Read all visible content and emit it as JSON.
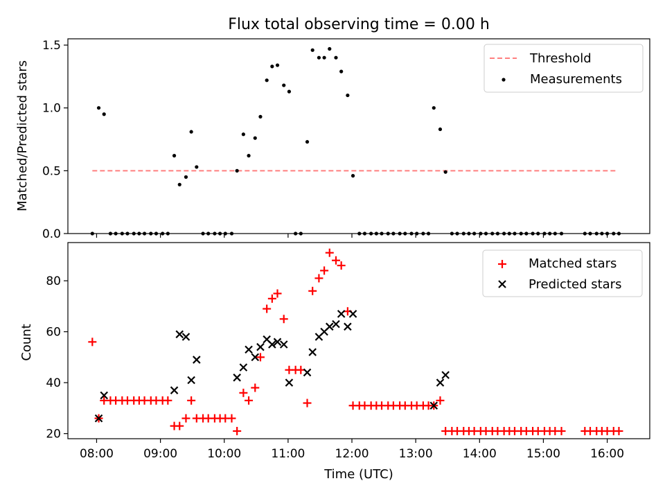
{
  "figure": {
    "title": "Flux total observing time = 0.00 h",
    "xlabel": "Time (UTC)"
  },
  "chart_data": [
    {
      "type": "scatter",
      "panel": "top",
      "ylabel": "Matched/Predicted stars",
      "xlim": [
        "07:33",
        "16:40"
      ],
      "ylim": [
        0,
        1.55
      ],
      "y_ticks": [
        "0.0",
        "0.5",
        "1.0",
        "1.5"
      ],
      "x_ticks": [
        "08:00",
        "09:00",
        "10:00",
        "11:00",
        "12:00",
        "13:00",
        "14:00",
        "15:00",
        "16:00"
      ],
      "legend_placement": "top-right",
      "threshold": {
        "name": "Threshold",
        "value": 0.5,
        "x_range": [
          "07:56",
          "16:10"
        ],
        "color": "#ff7f7f",
        "style": "dashed"
      },
      "series": [
        {
          "name": "Measurements",
          "color": "#000000",
          "marker": "dot",
          "points": [
            [
              "07:56",
              0
            ],
            [
              "08:02",
              1.0
            ],
            [
              "08:07",
              0.95
            ],
            [
              "08:13",
              0
            ],
            [
              "08:18",
              0
            ],
            [
              "08:24",
              0
            ],
            [
              "08:29",
              0
            ],
            [
              "08:35",
              0
            ],
            [
              "08:40",
              0
            ],
            [
              "08:45",
              0
            ],
            [
              "08:51",
              0
            ],
            [
              "08:56",
              0
            ],
            [
              "09:02",
              0
            ],
            [
              "09:07",
              0
            ],
            [
              "09:13",
              0.62
            ],
            [
              "09:18",
              0.39
            ],
            [
              "09:24",
              0.45
            ],
            [
              "09:29",
              0.81
            ],
            [
              "09:34",
              0.53
            ],
            [
              "09:40",
              0
            ],
            [
              "09:45",
              0
            ],
            [
              "09:51",
              0
            ],
            [
              "09:56",
              0
            ],
            [
              "10:01",
              0
            ],
            [
              "10:07",
              0
            ],
            [
              "10:12",
              0.5
            ],
            [
              "10:18",
              0.79
            ],
            [
              "10:23",
              0.62
            ],
            [
              "10:29",
              0.76
            ],
            [
              "10:34",
              0.93
            ],
            [
              "10:40",
              1.22
            ],
            [
              "10:45",
              1.33
            ],
            [
              "10:50",
              1.34
            ],
            [
              "10:56",
              1.18
            ],
            [
              "11:01",
              1.13
            ],
            [
              "11:07",
              0
            ],
            [
              "11:12",
              0
            ],
            [
              "11:18",
              0.73
            ],
            [
              "11:23",
              1.46
            ],
            [
              "11:29",
              1.4
            ],
            [
              "11:34",
              1.4
            ],
            [
              "11:39",
              1.47
            ],
            [
              "11:45",
              1.4
            ],
            [
              "11:50",
              1.29
            ],
            [
              "11:56",
              1.1
            ],
            [
              "12:01",
              0.46
            ],
            [
              "12:07",
              0
            ],
            [
              "12:12",
              0
            ],
            [
              "12:18",
              0
            ],
            [
              "12:23",
              0
            ],
            [
              "12:28",
              0
            ],
            [
              "12:34",
              0
            ],
            [
              "12:39",
              0
            ],
            [
              "12:45",
              0
            ],
            [
              "12:50",
              0
            ],
            [
              "12:56",
              0
            ],
            [
              "13:01",
              0
            ],
            [
              "13:07",
              0
            ],
            [
              "13:12",
              0
            ],
            [
              "13:17",
              1.0
            ],
            [
              "13:23",
              0.83
            ],
            [
              "13:28",
              0.49
            ],
            [
              "13:34",
              0
            ],
            [
              "13:39",
              0
            ],
            [
              "13:45",
              0
            ],
            [
              "13:50",
              0
            ],
            [
              "13:55",
              0
            ],
            [
              "14:01",
              0
            ],
            [
              "14:06",
              0
            ],
            [
              "14:12",
              0
            ],
            [
              "14:17",
              0
            ],
            [
              "14:23",
              0
            ],
            [
              "14:28",
              0
            ],
            [
              "14:33",
              0
            ],
            [
              "14:39",
              0
            ],
            [
              "14:44",
              0
            ],
            [
              "14:50",
              0
            ],
            [
              "14:55",
              0
            ],
            [
              "15:01",
              0
            ],
            [
              "15:06",
              0
            ],
            [
              "15:11",
              0
            ],
            [
              "15:17",
              0
            ],
            [
              "15:39",
              0
            ],
            [
              "15:44",
              0
            ],
            [
              "15:50",
              0
            ],
            [
              "15:55",
              0
            ],
            [
              "16:00",
              0
            ],
            [
              "16:06",
              0
            ],
            [
              "16:11",
              0
            ]
          ]
        }
      ]
    },
    {
      "type": "scatter",
      "panel": "bottom",
      "ylabel": "Count",
      "xlim": [
        "07:33",
        "16:40"
      ],
      "ylim": [
        18,
        95
      ],
      "y_ticks": [
        "20",
        "40",
        "60",
        "80"
      ],
      "x_ticks": [
        "08:00",
        "09:00",
        "10:00",
        "11:00",
        "12:00",
        "13:00",
        "14:00",
        "15:00",
        "16:00"
      ],
      "legend_placement": "top-right",
      "series": [
        {
          "name": "Matched stars",
          "color": "#ff0000",
          "marker": "plus",
          "points": [
            [
              "07:56",
              56
            ],
            [
              "08:02",
              26
            ],
            [
              "08:07",
              33
            ],
            [
              "08:13",
              33
            ],
            [
              "08:18",
              33
            ],
            [
              "08:24",
              33
            ],
            [
              "08:29",
              33
            ],
            [
              "08:35",
              33
            ],
            [
              "08:40",
              33
            ],
            [
              "08:45",
              33
            ],
            [
              "08:51",
              33
            ],
            [
              "08:56",
              33
            ],
            [
              "09:02",
              33
            ],
            [
              "09:07",
              33
            ],
            [
              "09:13",
              23
            ],
            [
              "09:18",
              23
            ],
            [
              "09:24",
              26
            ],
            [
              "09:29",
              33
            ],
            [
              "09:34",
              26
            ],
            [
              "09:40",
              26
            ],
            [
              "09:45",
              26
            ],
            [
              "09:51",
              26
            ],
            [
              "09:56",
              26
            ],
            [
              "10:01",
              26
            ],
            [
              "10:07",
              26
            ],
            [
              "10:12",
              21
            ],
            [
              "10:18",
              36
            ],
            [
              "10:23",
              33
            ],
            [
              "10:29",
              38
            ],
            [
              "10:34",
              50
            ],
            [
              "10:40",
              69
            ],
            [
              "10:45",
              73
            ],
            [
              "10:50",
              75
            ],
            [
              "10:56",
              65
            ],
            [
              "11:01",
              45
            ],
            [
              "11:07",
              45
            ],
            [
              "11:12",
              45
            ],
            [
              "11:18",
              32
            ],
            [
              "11:23",
              76
            ],
            [
              "11:29",
              81
            ],
            [
              "11:34",
              84
            ],
            [
              "11:39",
              91
            ],
            [
              "11:45",
              88
            ],
            [
              "11:50",
              86
            ],
            [
              "11:56",
              68
            ],
            [
              "12:01",
              31
            ],
            [
              "12:07",
              31
            ],
            [
              "12:12",
              31
            ],
            [
              "12:18",
              31
            ],
            [
              "12:23",
              31
            ],
            [
              "12:28",
              31
            ],
            [
              "12:34",
              31
            ],
            [
              "12:39",
              31
            ],
            [
              "12:45",
              31
            ],
            [
              "12:50",
              31
            ],
            [
              "12:56",
              31
            ],
            [
              "13:01",
              31
            ],
            [
              "13:07",
              31
            ],
            [
              "13:12",
              31
            ],
            [
              "13:17",
              31
            ],
            [
              "13:23",
              33
            ],
            [
              "13:28",
              21
            ],
            [
              "13:34",
              21
            ],
            [
              "13:39",
              21
            ],
            [
              "13:45",
              21
            ],
            [
              "13:50",
              21
            ],
            [
              "13:55",
              21
            ],
            [
              "14:01",
              21
            ],
            [
              "14:06",
              21
            ],
            [
              "14:12",
              21
            ],
            [
              "14:17",
              21
            ],
            [
              "14:23",
              21
            ],
            [
              "14:28",
              21
            ],
            [
              "14:33",
              21
            ],
            [
              "14:39",
              21
            ],
            [
              "14:44",
              21
            ],
            [
              "14:50",
              21
            ],
            [
              "14:55",
              21
            ],
            [
              "15:01",
              21
            ],
            [
              "15:06",
              21
            ],
            [
              "15:11",
              21
            ],
            [
              "15:17",
              21
            ],
            [
              "15:39",
              21
            ],
            [
              "15:44",
              21
            ],
            [
              "15:50",
              21
            ],
            [
              "15:55",
              21
            ],
            [
              "16:00",
              21
            ],
            [
              "16:06",
              21
            ],
            [
              "16:11",
              21
            ]
          ]
        },
        {
          "name": "Predicted stars",
          "color": "#000000",
          "marker": "x",
          "points": [
            [
              "08:02",
              26
            ],
            [
              "08:07",
              35
            ],
            [
              "09:13",
              37
            ],
            [
              "09:18",
              59
            ],
            [
              "09:24",
              58
            ],
            [
              "09:29",
              41
            ],
            [
              "09:34",
              49
            ],
            [
              "10:12",
              42
            ],
            [
              "10:18",
              46
            ],
            [
              "10:23",
              53
            ],
            [
              "10:29",
              50
            ],
            [
              "10:34",
              54
            ],
            [
              "10:40",
              57
            ],
            [
              "10:45",
              55
            ],
            [
              "10:50",
              56
            ],
            [
              "10:56",
              55
            ],
            [
              "11:01",
              40
            ],
            [
              "11:18",
              44
            ],
            [
              "11:23",
              52
            ],
            [
              "11:29",
              58
            ],
            [
              "11:34",
              60
            ],
            [
              "11:39",
              62
            ],
            [
              "11:45",
              63
            ],
            [
              "11:50",
              67
            ],
            [
              "11:56",
              62
            ],
            [
              "12:01",
              67
            ],
            [
              "13:17",
              31
            ],
            [
              "13:23",
              40
            ],
            [
              "13:28",
              43
            ]
          ]
        }
      ]
    }
  ]
}
